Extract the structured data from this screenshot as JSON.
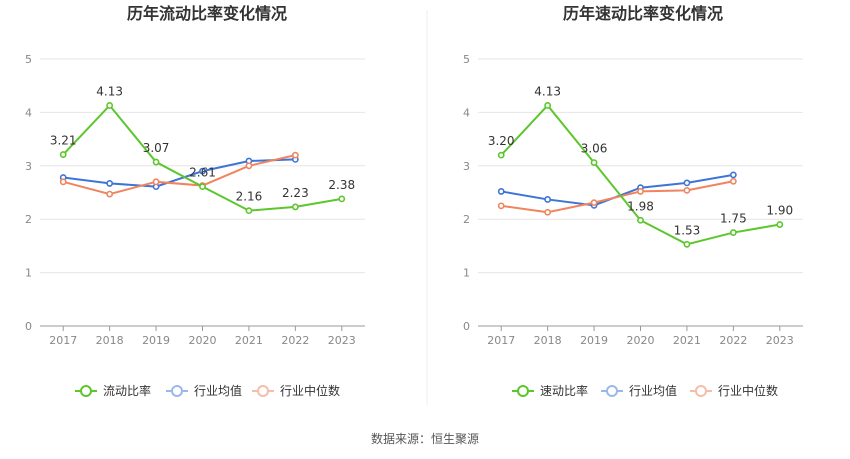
{
  "chart_data": [
    {
      "type": "line",
      "title": "历年流动比率变化情况",
      "categories": [
        "2017",
        "2018",
        "2019",
        "2020",
        "2021",
        "2022",
        "2023"
      ],
      "ylim": [
        0,
        5
      ],
      "yticks": [
        0,
        1,
        2,
        3,
        4,
        5
      ],
      "grid": true,
      "legend": "bottom",
      "series": [
        {
          "name": "流动比率",
          "color": "#5CC62D",
          "values": [
            3.21,
            4.13,
            3.07,
            2.61,
            2.16,
            2.23,
            2.38
          ],
          "labels": [
            "3.21",
            "4.13",
            "3.07",
            "2.61",
            "2.16",
            "2.23",
            "2.38"
          ]
        },
        {
          "name": "行业均值",
          "color": "#3E74D6",
          "values": [
            2.78,
            2.67,
            2.61,
            2.9,
            3.09,
            3.12,
            null
          ]
        },
        {
          "name": "行业中位数",
          "color": "#F0845E",
          "values": [
            2.7,
            2.47,
            2.7,
            2.63,
            3.0,
            3.2,
            null
          ]
        }
      ]
    },
    {
      "type": "line",
      "title": "历年速动比率变化情况",
      "categories": [
        "2017",
        "2018",
        "2019",
        "2020",
        "2021",
        "2022",
        "2023"
      ],
      "ylim": [
        0,
        5
      ],
      "yticks": [
        0,
        1,
        2,
        3,
        4,
        5
      ],
      "grid": true,
      "legend": "bottom",
      "series": [
        {
          "name": "速动比率",
          "color": "#5CC62D",
          "values": [
            3.2,
            4.13,
            3.06,
            1.98,
            1.53,
            1.75,
            1.9
          ],
          "labels": [
            "3.20",
            "4.13",
            "3.06",
            "1.98",
            "1.53",
            "1.75",
            "1.90"
          ]
        },
        {
          "name": "行业均值",
          "color": "#3E74D6",
          "values": [
            2.52,
            2.37,
            2.26,
            2.59,
            2.68,
            2.83,
            null
          ]
        },
        {
          "name": "行业中位数",
          "color": "#F0845E",
          "values": [
            2.25,
            2.13,
            2.31,
            2.52,
            2.54,
            2.71,
            null
          ]
        }
      ]
    }
  ],
  "footer": {
    "source": "数据来源：恒生聚源"
  }
}
